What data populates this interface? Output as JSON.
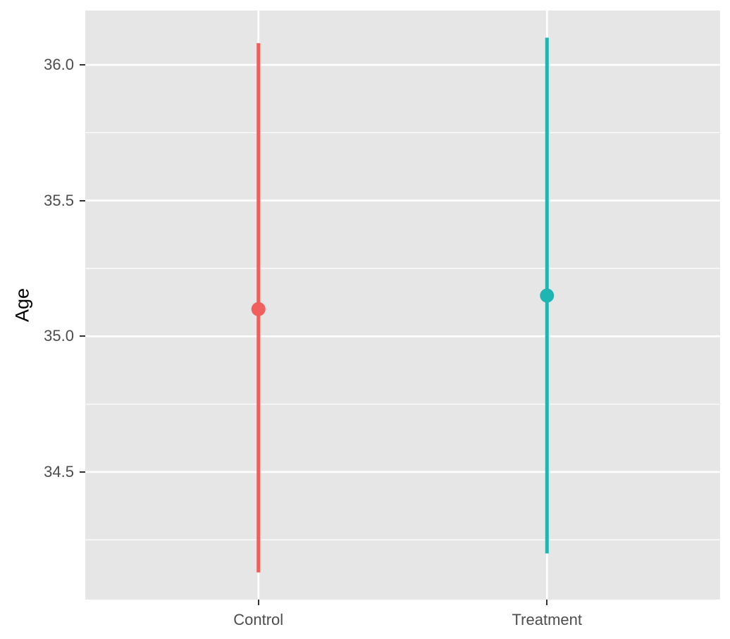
{
  "figure": {
    "background_color": "#ffffff",
    "panel_background_color": "#e6e6e6",
    "grid_major_color": "#ffffff",
    "grid_minor_color": "#ffffff",
    "tick_mark_color": "#333333",
    "tick_label_color": "#4d4d4d",
    "axis_title_color": "#000000"
  },
  "chart_data": {
    "type": "pointrange",
    "title": "",
    "xlabel": "",
    "ylabel": "Age",
    "categories": [
      "Control",
      "Treatment"
    ],
    "series": [
      {
        "name": "Control",
        "mean": 35.1,
        "lower": 34.13,
        "upper": 36.08,
        "color": "#f05f5c"
      },
      {
        "name": "Treatment",
        "mean": 35.15,
        "lower": 34.2,
        "upper": 36.1,
        "color": "#1eb5b2"
      }
    ],
    "yticks": [
      34.5,
      35.0,
      35.5,
      36.0
    ],
    "ytick_labels": [
      "34.5",
      "35.0",
      "35.5",
      "36.0"
    ],
    "yminor": [
      34.25,
      34.75,
      35.25,
      35.75
    ],
    "ylim": [
      34.03,
      36.2
    ],
    "grid": true,
    "legend_position": "none"
  }
}
